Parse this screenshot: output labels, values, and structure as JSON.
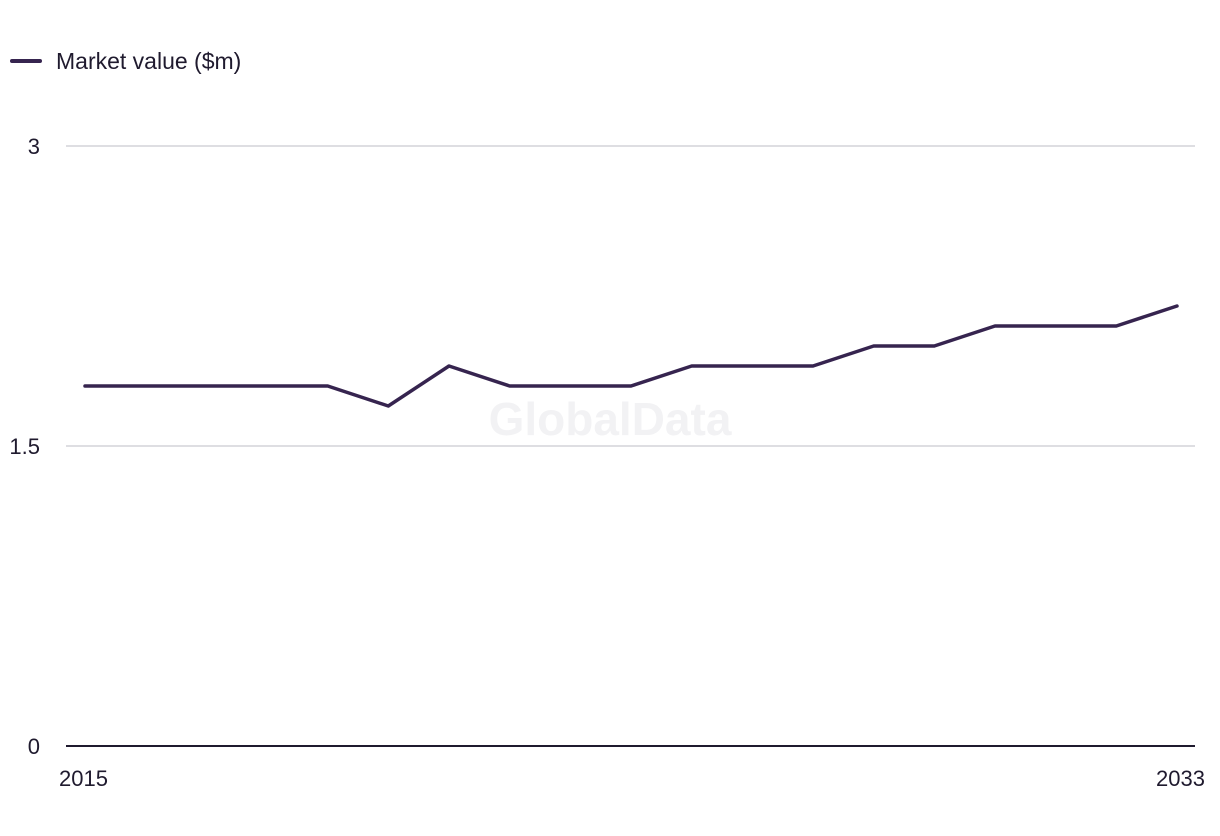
{
  "legend": {
    "series_label": "Market value ($m)"
  },
  "watermark": "GlobalData",
  "colors": {
    "series": "#36244f",
    "grid": "#d4d4d8",
    "axis": "#1f1a2e",
    "watermark": "#f2f2f4"
  },
  "chart_data": {
    "type": "line",
    "title": "",
    "xlabel": "",
    "ylabel": "",
    "x": [
      2015,
      2016,
      2017,
      2018,
      2019,
      2020,
      2021,
      2022,
      2023,
      2024,
      2025,
      2026,
      2027,
      2028,
      2029,
      2030,
      2031,
      2032,
      2033
    ],
    "series": [
      {
        "name": "Market value ($m)",
        "values": [
          1.8,
          1.8,
          1.8,
          1.8,
          1.8,
          1.7,
          1.9,
          1.8,
          1.8,
          1.8,
          1.9,
          1.9,
          1.9,
          2.0,
          2.0,
          2.1,
          2.1,
          2.1,
          2.2
        ]
      }
    ],
    "ylim": [
      0,
      3
    ],
    "y_ticks": [
      "0",
      "1.5",
      "3"
    ],
    "x_tick_labels": [
      "2015",
      "2033"
    ],
    "grid": true,
    "legend_position": "top-left"
  }
}
